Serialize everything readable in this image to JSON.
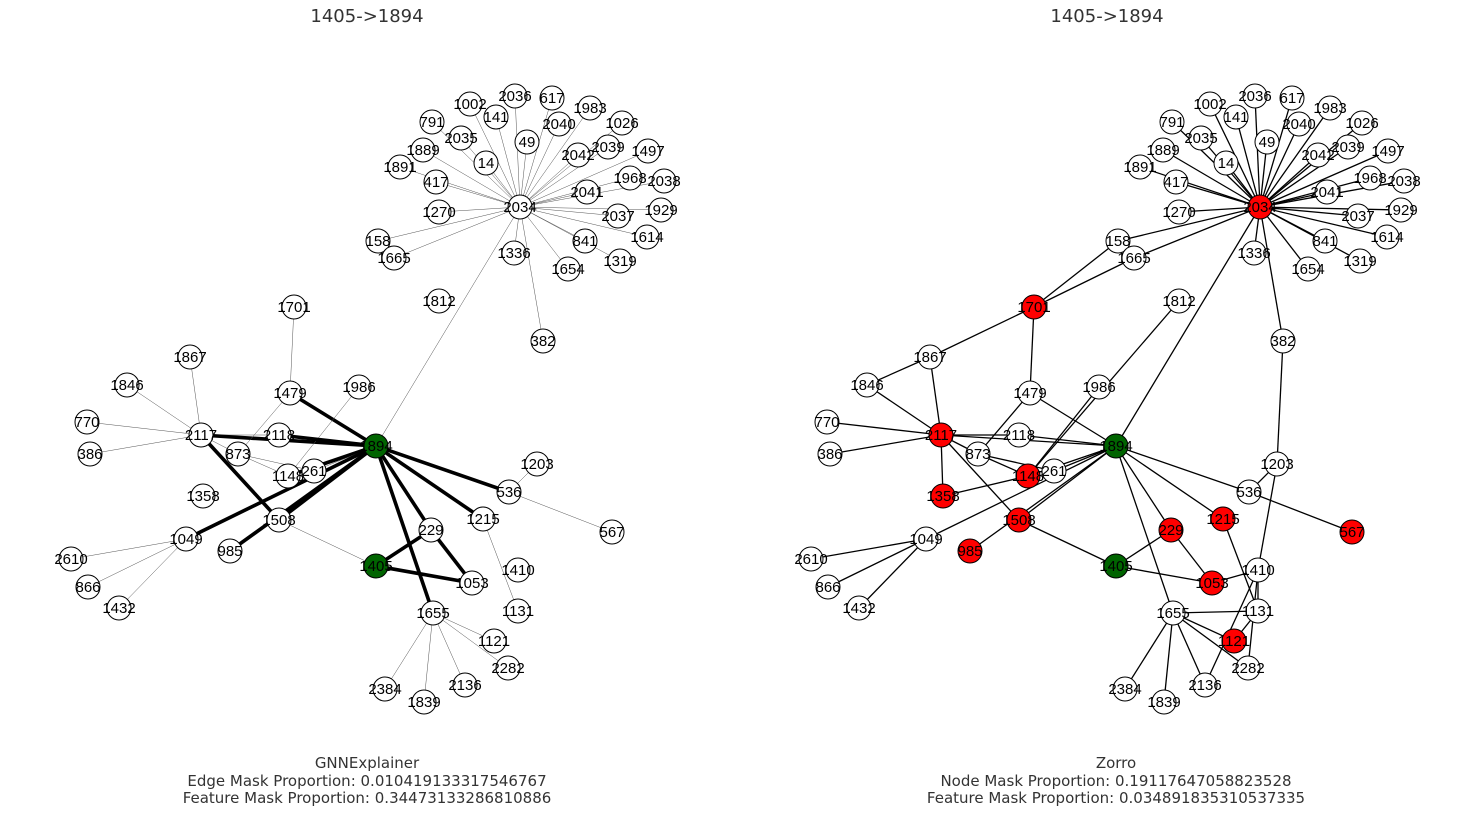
{
  "panels": [
    {
      "title": "1405->1894",
      "caption": {
        "method": "GNNExplainer",
        "line2": "Edge Mask Proportion: 0.010419133317546767",
        "line3": "Feature Mask Proportion: 0.34473133286810886"
      },
      "node_colors": {
        "1405": "#006400",
        "1894": "#006400"
      },
      "bold_edges": [
        [
          "1479",
          "1894"
        ],
        [
          "2117",
          "1894"
        ],
        [
          "2118",
          "1894"
        ],
        [
          "1894",
          "1148"
        ],
        [
          "1894",
          "1049"
        ],
        [
          "1894",
          "985"
        ],
        [
          "1894",
          "229"
        ],
        [
          "1894",
          "1655"
        ],
        [
          "1894",
          "1215"
        ],
        [
          "1894",
          "536"
        ],
        [
          "1405",
          "229"
        ],
        [
          "1405",
          "1053"
        ],
        [
          "229",
          "1053"
        ],
        [
          "2117",
          "1508"
        ],
        [
          "1508",
          "1894"
        ]
      ]
    },
    {
      "title": "1405->1894",
      "caption": {
        "method": "Zorro",
        "line2": "Node Mask Proportion: 0.19117647058823528",
        "line3": "Feature Mask Proportion: 0.034891835310537335"
      },
      "node_colors": {
        "1405": "#006400",
        "1894": "#006400",
        "2034": "#ff0000",
        "1701": "#ff0000",
        "2117": "#ff0000",
        "1358": "#ff0000",
        "1148": "#ff0000",
        "1508": "#ff0000",
        "985": "#ff0000",
        "229": "#ff0000",
        "1215": "#ff0000",
        "567": "#ff0000",
        "1053": "#ff0000",
        "1121": "#ff0000"
      },
      "bold_edges": []
    }
  ],
  "graph": {
    "nodes": [
      "2034",
      "1002",
      "2036",
      "617",
      "1983",
      "791",
      "141",
      "2040",
      "1026",
      "2035",
      "49",
      "1889",
      "2042",
      "2039",
      "1497",
      "14",
      "1891",
      "417",
      "1968",
      "2038",
      "2041",
      "1270",
      "2037",
      "1929",
      "158",
      "841",
      "1614",
      "1665",
      "1336",
      "1654",
      "1319",
      "1812",
      "382",
      "1701",
      "1867",
      "1846",
      "1479",
      "1986",
      "770",
      "2117",
      "2118",
      "1894",
      "386",
      "873",
      "1148",
      "261",
      "1203",
      "536",
      "1358",
      "1215",
      "1508",
      "567",
      "1049",
      "229",
      "985",
      "1405",
      "1410",
      "2610",
      "1053",
      "866",
      "1432",
      "1655",
      "1131",
      "1121",
      "2282",
      "2384",
      "2136",
      "1839"
    ],
    "edges": [
      [
        "2034",
        "1002"
      ],
      [
        "2034",
        "2036"
      ],
      [
        "2034",
        "617"
      ],
      [
        "2034",
        "1983"
      ],
      [
        "2034",
        "791"
      ],
      [
        "2034",
        "141"
      ],
      [
        "2034",
        "2040"
      ],
      [
        "2034",
        "1026"
      ],
      [
        "2034",
        "2035"
      ],
      [
        "2034",
        "49"
      ],
      [
        "2034",
        "1889"
      ],
      [
        "2034",
        "2042"
      ],
      [
        "2034",
        "2039"
      ],
      [
        "2034",
        "1497"
      ],
      [
        "2034",
        "14"
      ],
      [
        "2034",
        "1891"
      ],
      [
        "2034",
        "417"
      ],
      [
        "2034",
        "1968"
      ],
      [
        "2034",
        "2038"
      ],
      [
        "2034",
        "2041"
      ],
      [
        "2034",
        "1270"
      ],
      [
        "2034",
        "2037"
      ],
      [
        "2034",
        "1929"
      ],
      [
        "2034",
        "158"
      ],
      [
        "2034",
        "841"
      ],
      [
        "2034",
        "1614"
      ],
      [
        "2034",
        "1665"
      ],
      [
        "2034",
        "1336"
      ],
      [
        "2034",
        "1654"
      ],
      [
        "2034",
        "1319"
      ],
      [
        "2034",
        "382"
      ],
      [
        "2034",
        "1894"
      ],
      [
        "1701",
        "1479"
      ],
      [
        "2117",
        "1867"
      ],
      [
        "2117",
        "1846"
      ],
      [
        "2117",
        "770"
      ],
      [
        "2117",
        "386"
      ],
      [
        "2117",
        "2118"
      ],
      [
        "2117",
        "1894"
      ],
      [
        "2117",
        "873"
      ],
      [
        "2117",
        "1508"
      ],
      [
        "1479",
        "1894"
      ],
      [
        "1479",
        "873"
      ],
      [
        "1986",
        "1148"
      ],
      [
        "2118",
        "1894"
      ],
      [
        "1894",
        "1148"
      ],
      [
        "1894",
        "261"
      ],
      [
        "1894",
        "1049"
      ],
      [
        "1894",
        "985"
      ],
      [
        "1894",
        "229"
      ],
      [
        "1894",
        "1655"
      ],
      [
        "1894",
        "1215"
      ],
      [
        "1894",
        "536"
      ],
      [
        "1508",
        "1894"
      ],
      [
        "873",
        "1148"
      ],
      [
        "873",
        "261"
      ],
      [
        "536",
        "1203"
      ],
      [
        "536",
        "567"
      ],
      [
        "1049",
        "2610"
      ],
      [
        "1049",
        "866"
      ],
      [
        "1049",
        "1432"
      ],
      [
        "1405",
        "229"
      ],
      [
        "1405",
        "1053"
      ],
      [
        "1405",
        "1508"
      ],
      [
        "229",
        "1053"
      ],
      [
        "1215",
        "1131"
      ],
      [
        "1655",
        "1121"
      ],
      [
        "1655",
        "2282"
      ],
      [
        "1655",
        "2384"
      ],
      [
        "1655",
        "2136"
      ],
      [
        "1655",
        "1839"
      ]
    ],
    "extra_edges_right": [
      [
        "158",
        "1665"
      ],
      [
        "158",
        "1701"
      ],
      [
        "1665",
        "1701"
      ],
      [
        "1701",
        "1867"
      ],
      [
        "1867",
        "1846"
      ],
      [
        "1812",
        "1148"
      ],
      [
        "382",
        "1203"
      ],
      [
        "1203",
        "1410"
      ],
      [
        "1410",
        "1053"
      ],
      [
        "1410",
        "1131"
      ],
      [
        "1410",
        "2136"
      ],
      [
        "1131",
        "1121"
      ],
      [
        "1131",
        "1655"
      ],
      [
        "1410",
        "2282"
      ],
      [
        "2117",
        "1358"
      ],
      [
        "1148",
        "1358"
      ]
    ]
  }
}
